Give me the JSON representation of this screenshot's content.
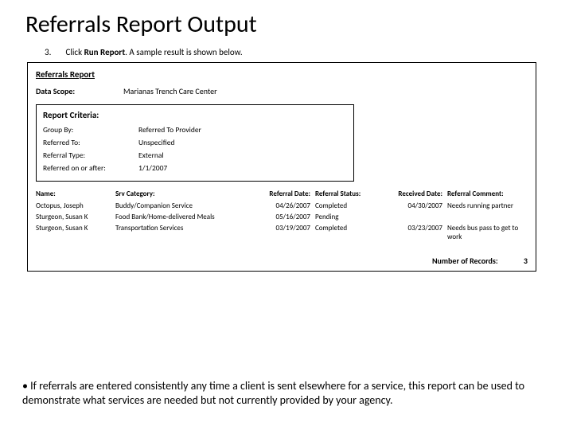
{
  "title": "Referrals Report Output",
  "step": {
    "number": "3.",
    "prefix": "Click ",
    "bold": "Run Report",
    "suffix": ". A sample result is shown below."
  },
  "report": {
    "heading": "Referrals Report",
    "scope_label": "Data Scope:",
    "scope_value": "Marianas Trench Care Center",
    "criteria_heading": "Report Criteria:",
    "criteria": [
      {
        "label": "Group By:",
        "value": "Referred To Provider"
      },
      {
        "label": "Referred To:",
        "value": "Unspecified"
      },
      {
        "label": "Referral Type:",
        "value": "External"
      },
      {
        "label": "Referred on or after:",
        "value": "1/1/2007"
      }
    ],
    "columns": {
      "name": "Name:",
      "srv": "Srv Category:",
      "rdate": "Referral Date:",
      "status": "Referral Status:",
      "recd": "Received Date:",
      "comment": "Referral Comment:"
    },
    "rows": [
      {
        "name": "Octopus, Joseph",
        "srv": "Buddy/Companion Service",
        "rdate": "04/26/2007",
        "status": "Completed",
        "recd": "04/30/2007",
        "comment": "Needs running partner"
      },
      {
        "name": "Sturgeon, Susan K",
        "srv": "Food Bank/Home-delivered Meals",
        "rdate": "05/16/2007",
        "status": "Pending",
        "recd": "",
        "comment": ""
      },
      {
        "name": "Sturgeon, Susan K",
        "srv": "Transportation Services",
        "rdate": "03/19/2007",
        "status": "Completed",
        "recd": "03/23/2007",
        "comment": "Needs bus pass to get to work"
      }
    ],
    "footer_label": "Number of Records:",
    "footer_value": "3"
  },
  "note": "• If referrals are entered consistently any time a client is sent elsewhere for a service, this report can be used to demonstrate what services are needed but not currently provided by your agency."
}
